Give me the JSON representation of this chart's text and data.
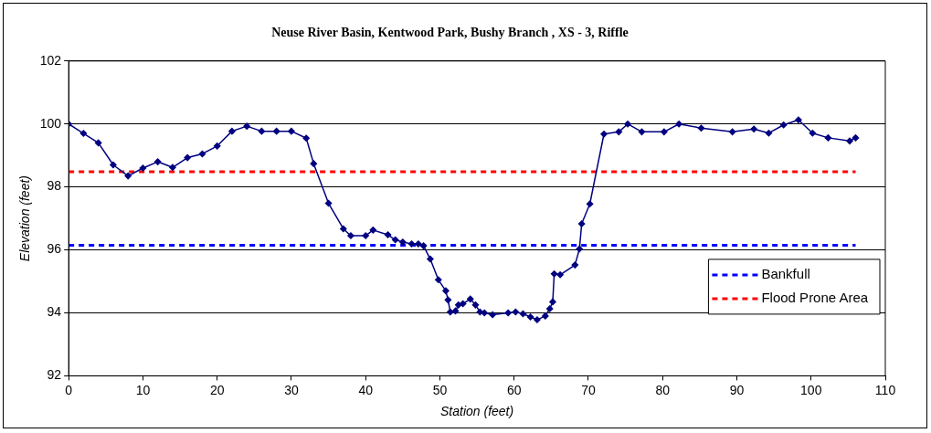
{
  "chart_data": {
    "type": "line",
    "title": "Neuse River Basin, Kentwood Park, Bushy Branch , XS - 3, Riffle",
    "xlabel": "Station (feet)",
    "ylabel": "Elevation (feet)",
    "xlim": [
      0,
      110
    ],
    "xticks": [
      0,
      10,
      20,
      30,
      40,
      50,
      60,
      70,
      80,
      90,
      100,
      110
    ],
    "ylim": [
      92,
      102
    ],
    "yticks": [
      92,
      94,
      96,
      98,
      100,
      102
    ],
    "grid": "y",
    "legend": "right",
    "marker": "diamond",
    "series": [
      {
        "color": "#000080",
        "x": [
          0,
          2,
          4,
          6,
          8,
          10,
          12,
          14,
          16,
          18,
          20,
          22,
          24,
          26,
          28,
          30,
          32,
          33,
          35,
          37,
          38,
          40,
          41,
          43,
          44,
          45,
          46.2,
          47.1,
          47.8,
          48.7,
          49.8,
          50.8,
          51.1,
          51.4,
          52.1,
          52.5,
          53.1,
          54.1,
          54.8,
          55.4,
          56,
          57.1,
          59.2,
          60.2,
          61.2,
          62.2,
          63.1,
          64.2,
          64.8,
          65.2,
          65.4,
          66.2,
          68.2,
          68.8,
          69.1,
          70.2,
          72.1,
          74.1,
          75.3,
          77.2,
          80.2,
          82.2,
          85.2,
          89.4,
          92.3,
          94.3,
          96.3,
          98.3,
          100.2,
          102.3,
          105.2,
          106
        ],
        "values": [
          100,
          99.7,
          99.4,
          98.7,
          98.35,
          98.6,
          98.8,
          98.62,
          98.93,
          99.05,
          99.3,
          99.77,
          99.93,
          99.77,
          99.77,
          99.77,
          99.55,
          98.74,
          97.48,
          96.67,
          96.45,
          96.45,
          96.63,
          96.48,
          96.32,
          96.25,
          96.19,
          96.19,
          96.13,
          95.71,
          95.05,
          94.7,
          94.41,
          94.03,
          94.06,
          94.25,
          94.29,
          94.44,
          94.25,
          94.03,
          94,
          93.94,
          94,
          94.03,
          93.97,
          93.87,
          93.78,
          93.9,
          94.13,
          94.35,
          95.24,
          95.21,
          95.52,
          96.03,
          96.83,
          97.46,
          99.68,
          99.75,
          100,
          99.75,
          99.75,
          100,
          99.87,
          99.75,
          99.84,
          99.71,
          99.97,
          100.13,
          99.71,
          99.56,
          99.46,
          99.56
        ]
      },
      {
        "name": "Bankfull",
        "color": "#0000ff",
        "x": [
          0,
          106
        ],
        "values": [
          96.15,
          96.15
        ],
        "marker": "none",
        "line_style": "dashed"
      },
      {
        "name": "Flood Prone Area",
        "color": "#ff0000",
        "x": [
          0,
          106
        ],
        "values": [
          98.48,
          98.48
        ],
        "marker": "none",
        "line_style": "dashed"
      }
    ]
  }
}
